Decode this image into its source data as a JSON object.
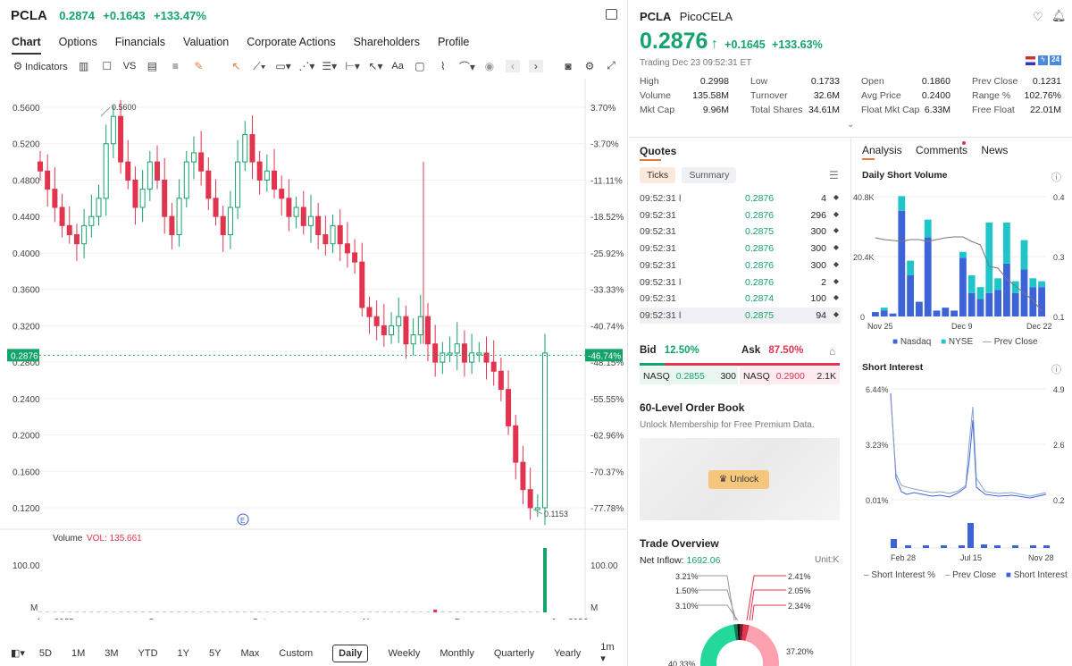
{
  "header": {
    "symbol": "PCLA",
    "price": "0.2874",
    "change": "+0.1643",
    "change_pct": "+133.47%"
  },
  "tabs": [
    "Chart",
    "Options",
    "Financials",
    "Valuation",
    "Corporate Actions",
    "Shareholders",
    "Profile"
  ],
  "toolbar": {
    "indicators": "Indicators",
    "vs": "VS",
    "aa": "Aa"
  },
  "chart": {
    "price_ticks": [
      "0.5600",
      "0.5200",
      "0.4800",
      "0.4400",
      "0.4000",
      "0.3600",
      "0.3200",
      "0.2800",
      "0.2400",
      "0.2000",
      "0.1600",
      "0.1200"
    ],
    "pct_ticks": [
      "3.70%",
      "-3.70%",
      "-11.11%",
      "-18.52%",
      "-25.92%",
      "-33.33%",
      "-40.74%",
      "-48.15%",
      "-55.55%",
      "-62.96%",
      "-70.37%",
      "-77.78%"
    ],
    "high_label": "0.5600",
    "low_label": "0.1153",
    "current_price": "0.2876",
    "current_pct": "-46.74%",
    "earnings_marker": "E",
    "volume_label": "Volume",
    "vol_value": "VOL: 135.661",
    "vol_tick_left": "100.00",
    "vol_tick_right": "100.00",
    "vol_m_left": "M",
    "vol_m_right": "M",
    "months": [
      "Aug 2025",
      "Sep",
      "Oct",
      "Nov",
      "Dec",
      "Jan 2026"
    ],
    "colors": {
      "up": "#14a36a",
      "down": "#e0344f"
    }
  },
  "chart_data": [
    {
      "type": "candlestick",
      "title": "",
      "ylim": [
        0.11,
        0.58
      ],
      "y_unit": "USD",
      "x_range": [
        "2025-07-28",
        "2026-01-02"
      ],
      "close_series": [
        0.49,
        0.47,
        0.45,
        0.43,
        0.42,
        0.41,
        0.43,
        0.44,
        0.46,
        0.52,
        0.55,
        0.5,
        0.48,
        0.45,
        0.47,
        0.5,
        0.48,
        0.44,
        0.42,
        0.46,
        0.5,
        0.51,
        0.49,
        0.46,
        0.44,
        0.42,
        0.45,
        0.5,
        0.53,
        0.5,
        0.48,
        0.49,
        0.47,
        0.46,
        0.44,
        0.45,
        0.43,
        0.44,
        0.42,
        0.41,
        0.43,
        0.41,
        0.4,
        0.39,
        0.34,
        0.33,
        0.32,
        0.31,
        0.32,
        0.33,
        0.3,
        0.31,
        0.33,
        0.3,
        0.28,
        0.29,
        0.29,
        0.3,
        0.28,
        0.29,
        0.29,
        0.28,
        0.27,
        0.25,
        0.21,
        0.17,
        0.14,
        0.12,
        0.12,
        0.29
      ],
      "high": 0.56,
      "low": 0.1153,
      "last": 0.2876
    },
    {
      "type": "bar",
      "title": "Volume",
      "series": [
        {
          "name": "Volume",
          "values": [
            2,
            1,
            1,
            1,
            1,
            1,
            1,
            1,
            1,
            1,
            1,
            1,
            1,
            1,
            1,
            1,
            1,
            1,
            1,
            1,
            1,
            1,
            1,
            1,
            1,
            1,
            1,
            1,
            1,
            1,
            1,
            1,
            1,
            1,
            1,
            1,
            1,
            1,
            1,
            1,
            1,
            1,
            1,
            1,
            1,
            1,
            1,
            1,
            1,
            1,
            1,
            1,
            1,
            1,
            6,
            1,
            1,
            1,
            1,
            1,
            1,
            1,
            1,
            1,
            1,
            1,
            1,
            1,
            1,
            135.661
          ]
        }
      ],
      "ylabel": "M"
    },
    {
      "type": "bar",
      "title": "Daily Short Volume",
      "categories": [
        "Nov 25",
        "",
        "",
        "",
        "",
        "",
        "",
        "",
        "",
        "",
        "",
        "",
        "",
        "",
        "",
        "",
        "",
        "",
        "",
        "Dec 22"
      ],
      "series": [
        {
          "name": "Nasdaq",
          "values": [
            1.5,
            2,
            1,
            36,
            14,
            5,
            27,
            2,
            3,
            2,
            20,
            8,
            6,
            8,
            9,
            18,
            8,
            16,
            10,
            10
          ]
        },
        {
          "name": "NYSE",
          "values": [
            0,
            1,
            0,
            5,
            5,
            0,
            6,
            0,
            0,
            0,
            2,
            6,
            4,
            24,
            4,
            14,
            4,
            10,
            3,
            2
          ]
        }
      ],
      "ylim": [
        0,
        40.8
      ],
      "ytick_labels": [
        "0",
        "20.4K",
        "40.8K"
      ],
      "right_ticks": [
        "0.1",
        "0.3",
        "0.4"
      ],
      "x_ticks": [
        "Nov 25",
        "Dec 9",
        "Dec 22"
      ]
    },
    {
      "type": "line",
      "title": "Short Interest",
      "y_ticks": [
        "0.01%",
        "3.23%",
        "6.44%"
      ],
      "right_ticks": [
        "0.2",
        "2.6",
        "4.9"
      ],
      "x_ticks": [
        "Feb 28",
        "Jul 15",
        "Nov 28"
      ]
    }
  ],
  "right": {
    "symbol": "PCLA",
    "name": "PicoCELA",
    "price": "0.2876",
    "change": "+0.1645",
    "change_pct": "+133.63%",
    "trading_time": "Trading Dec 23 09:52:31 ET",
    "badge_24": "24",
    "stats": [
      [
        {
          "label": "High",
          "value": "0.2998",
          "color": "green"
        },
        {
          "label": "Low",
          "value": "0.1733",
          "color": "green"
        },
        {
          "label": "Open",
          "value": "0.1860",
          "color": "green"
        },
        {
          "label": "Prev Close",
          "value": "0.1231",
          "color": ""
        }
      ],
      [
        {
          "label": "Volume",
          "value": "135.58M",
          "color": ""
        },
        {
          "label": "Turnover",
          "value": "32.6M",
          "color": ""
        },
        {
          "label": "Avg Price",
          "value": "0.2400",
          "color": "green"
        },
        {
          "label": "Range %",
          "value": "102.76%",
          "color": ""
        }
      ],
      [
        {
          "label": "Mkt Cap",
          "value": "9.96M",
          "color": ""
        },
        {
          "label": "Total Shares",
          "value": "34.61M",
          "color": ""
        },
        {
          "label": "Float Mkt Cap",
          "value": "6.33M",
          "color": ""
        },
        {
          "label": "Free Float",
          "value": "22.01M",
          "color": ""
        }
      ]
    ],
    "quotes": {
      "title": "Quotes",
      "tab_ticks": "Ticks",
      "tab_summary": "Summary",
      "rows": [
        {
          "time": "09:52:31",
          "flag": "l",
          "price": "0.2876",
          "qty": "4"
        },
        {
          "time": "09:52:31",
          "flag": "",
          "price": "0.2876",
          "qty": "296"
        },
        {
          "time": "09:52:31",
          "flag": "",
          "price": "0.2875",
          "qty": "300"
        },
        {
          "time": "09:52:31",
          "flag": "",
          "price": "0.2876",
          "qty": "300"
        },
        {
          "time": "09:52:31",
          "flag": "",
          "price": "0.2876",
          "qty": "300"
        },
        {
          "time": "09:52:31",
          "flag": "l",
          "price": "0.2876",
          "qty": "2"
        },
        {
          "time": "09:52:31",
          "flag": "",
          "price": "0.2874",
          "qty": "100"
        },
        {
          "time": "09:52:31",
          "flag": "l",
          "price": "0.2875",
          "qty": "94"
        }
      ]
    },
    "bidask": {
      "bid_label": "Bid",
      "bid_pct": "12.50%",
      "ask_label": "Ask",
      "ask_pct": "87.50%",
      "bid_exch": "NASQ",
      "bid_price": "0.2855",
      "bid_qty": "300",
      "ask_exch": "NASQ",
      "ask_price": "0.2900",
      "ask_qty": "2.1K"
    },
    "orderbook": {
      "title": "60-Level Order Book",
      "subtitle": "Unlock Membership for Free Premium Data.",
      "unlock": "Unlock"
    },
    "trade": {
      "title": "Trade Overview",
      "inflow_label": "Net Inflow:",
      "inflow_value": "1692.06",
      "unit": "Unit:K",
      "left_labels": [
        "3.21%",
        "1.50%",
        "3.10%",
        "40.33%"
      ],
      "right_labels": [
        "2.41%",
        "2.05%",
        "2.34%",
        "37.20%"
      ]
    },
    "analysis": {
      "tabs": [
        "Analysis",
        "Comments",
        "News"
      ],
      "short_volume_title": "Daily Short Volume",
      "legend": [
        "Nasdaq",
        "NYSE",
        "Prev Close"
      ],
      "short_interest_title": "Short Interest",
      "si_legend": [
        "Short Interest %",
        "Prev Close",
        "Short Interest"
      ]
    }
  },
  "period": {
    "items": [
      "5D",
      "1M",
      "3M",
      "YTD",
      "1Y",
      "5Y",
      "Max",
      "Custom"
    ],
    "intervals": [
      "Daily",
      "Weekly",
      "Monthly",
      "Quarterly",
      "Yearly"
    ],
    "min": "1m"
  }
}
